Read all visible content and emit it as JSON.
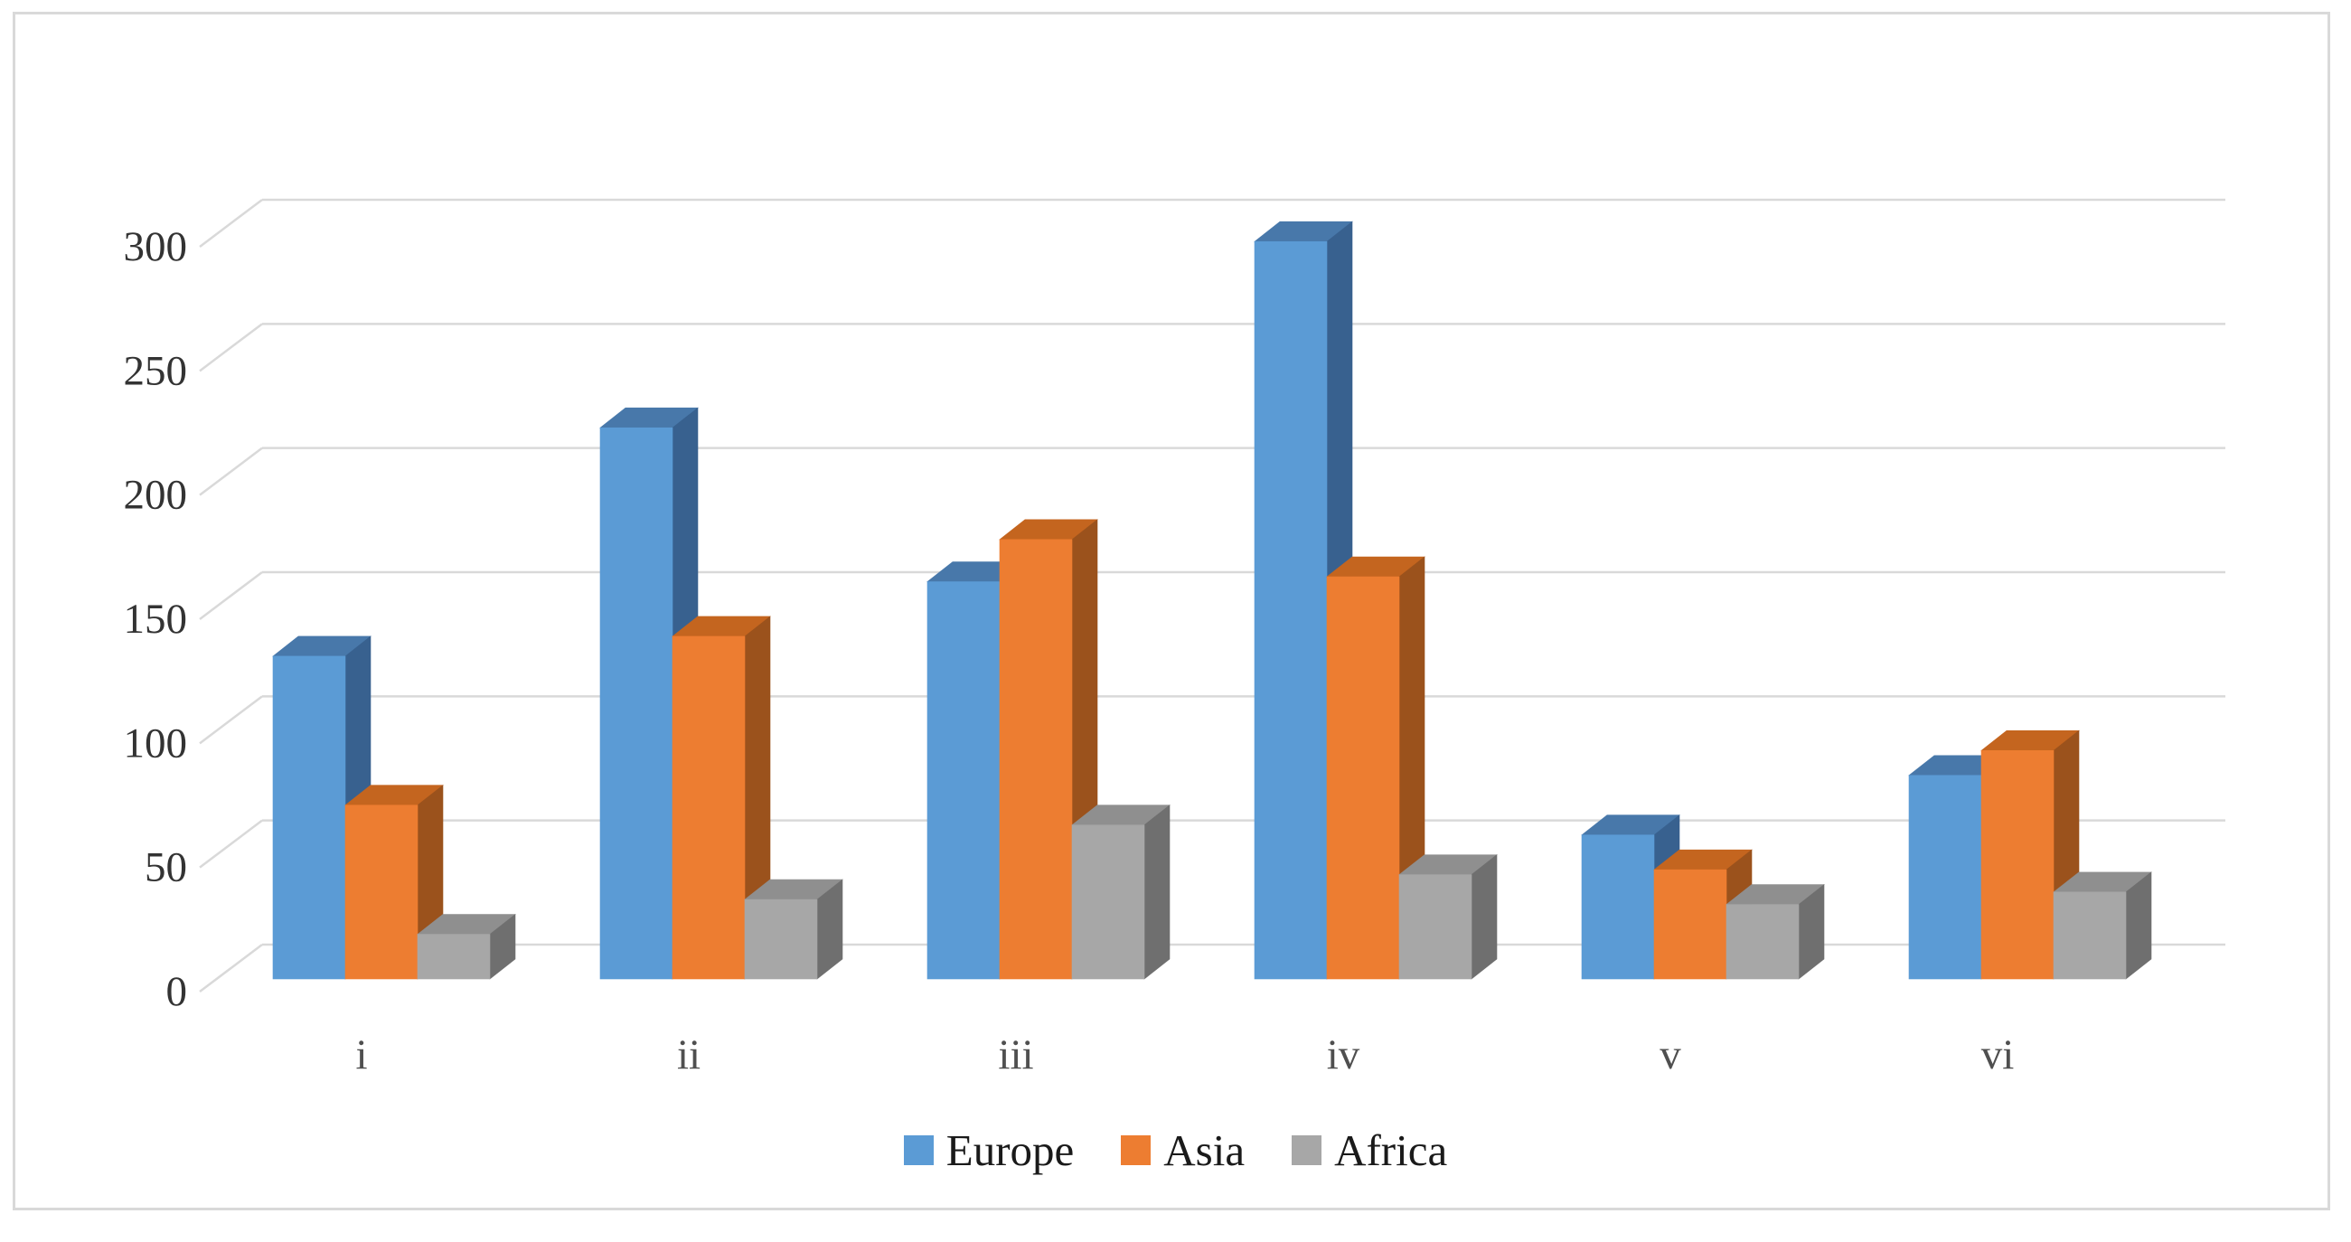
{
  "figure": {
    "background": "#ffffff",
    "border_color": "#d9d9d9"
  },
  "colors": {
    "gridline": "#d9d9d9",
    "y_tick_label": "#333333",
    "category_label": "#4f4f4f",
    "legend_label": "#1a1a1a"
  },
  "chart_data": {
    "type": "bar",
    "projection": "3d-clustered-column",
    "title": "",
    "xlabel": "",
    "ylabel": "",
    "categories": [
      "i",
      "ii",
      "iii",
      "iv",
      "v",
      "vi"
    ],
    "series": [
      {
        "name": "Europe",
        "color": "#5b9bd5",
        "side_color": "#38618f",
        "top_color": "#4878aa",
        "values": [
          130,
          222,
          160,
          297,
          58,
          82
        ]
      },
      {
        "name": "Asia",
        "color": "#ed7d31",
        "side_color": "#9b521c",
        "top_color": "#c4651f",
        "values": [
          70,
          138,
          177,
          162,
          44,
          92
        ]
      },
      {
        "name": "Africa",
        "color": "#a7a7a7",
        "side_color": "#6f6f6f",
        "top_color": "#8f8f8f",
        "values": [
          18,
          32,
          62,
          42,
          30,
          35
        ]
      }
    ],
    "y_axis": {
      "min": 0,
      "max": 300,
      "tick_step": 50,
      "ticks": [
        0,
        50,
        100,
        150,
        200,
        250,
        300
      ]
    },
    "grid": true,
    "legend_position": "bottom-center"
  }
}
